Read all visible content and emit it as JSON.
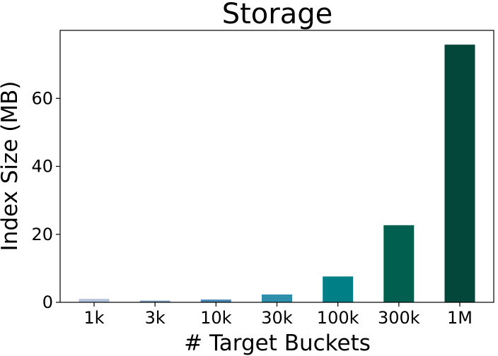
{
  "chart_data": {
    "type": "bar",
    "title": "Storage",
    "xlabel": "# Target Buckets",
    "ylabel": "Index Size (MB)",
    "categories": [
      "1k",
      "3k",
      "10k",
      "30k",
      "100k",
      "300k",
      "1M"
    ],
    "values": [
      1.0,
      0.5,
      0.8,
      2.3,
      7.6,
      22.7,
      75.8
    ],
    "ylim": [
      0,
      80
    ],
    "yticks": [
      0,
      20,
      40,
      60
    ],
    "grid": false,
    "colors": [
      "#b3c3dd",
      "#7c9cbf",
      "#4a87b4",
      "#2d8fac",
      "#007f86",
      "#005f4e",
      "#03473b"
    ]
  }
}
